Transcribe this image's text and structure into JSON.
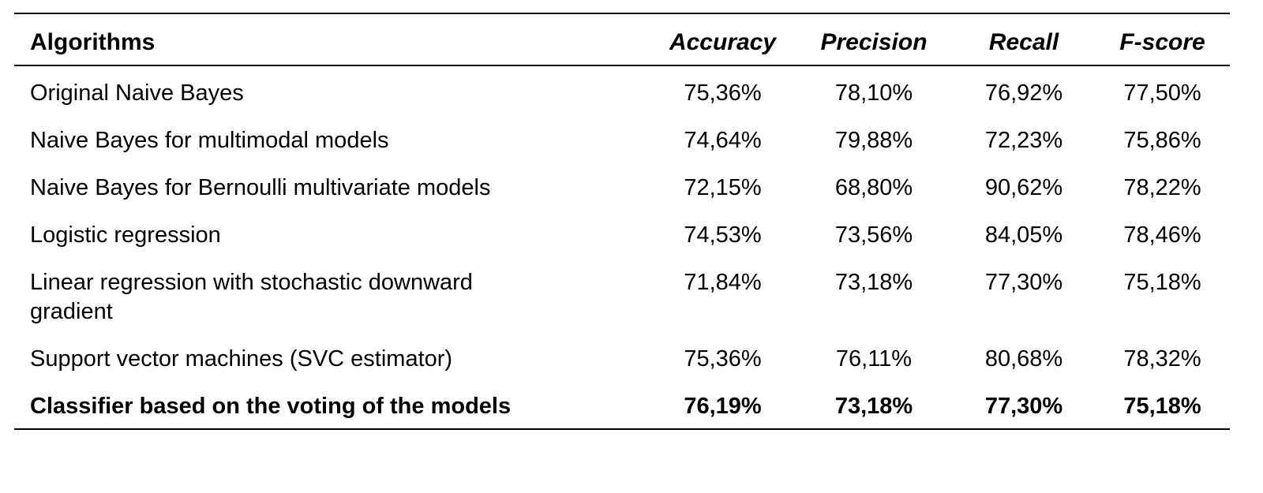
{
  "table": {
    "headers": {
      "algorithms": "Algorithms",
      "accuracy": "Accuracy",
      "precision": "Precision",
      "recall": "Recall",
      "fscore": "F-score"
    },
    "rows": [
      {
        "algorithm": "Original Naive Bayes",
        "accuracy": "75,36%",
        "precision": "78,10%",
        "recall": "76,92%",
        "fscore": "77,50%"
      },
      {
        "algorithm": "Naive Bayes for multimodal models",
        "accuracy": "74,64%",
        "precision": "79,88%",
        "recall": "72,23%",
        "fscore": "75,86%"
      },
      {
        "algorithm": "Naive Bayes for Bernoulli multivariate models",
        "accuracy": "72,15%",
        "precision": "68,80%",
        "recall": "90,62%",
        "fscore": "78,22%"
      },
      {
        "algorithm": "Logistic regression",
        "accuracy": "74,53%",
        "precision": "73,56%",
        "recall": "84,05%",
        "fscore": "78,46%"
      },
      {
        "algorithm": "Linear regression with stochastic downward gradient",
        "accuracy": "71,84%",
        "precision": "73,18%",
        "recall": "77,30%",
        "fscore": "75,18%"
      },
      {
        "algorithm": "Support vector machines (SVC estimator)",
        "accuracy": "75,36%",
        "precision": "76,11%",
        "recall": "80,68%",
        "fscore": "78,32%"
      },
      {
        "algorithm": "Classifier based on the voting of the models",
        "accuracy": "76,19%",
        "precision": "73,18%",
        "recall": "77,30%",
        "fscore": "75,18%",
        "bold": true
      }
    ]
  }
}
